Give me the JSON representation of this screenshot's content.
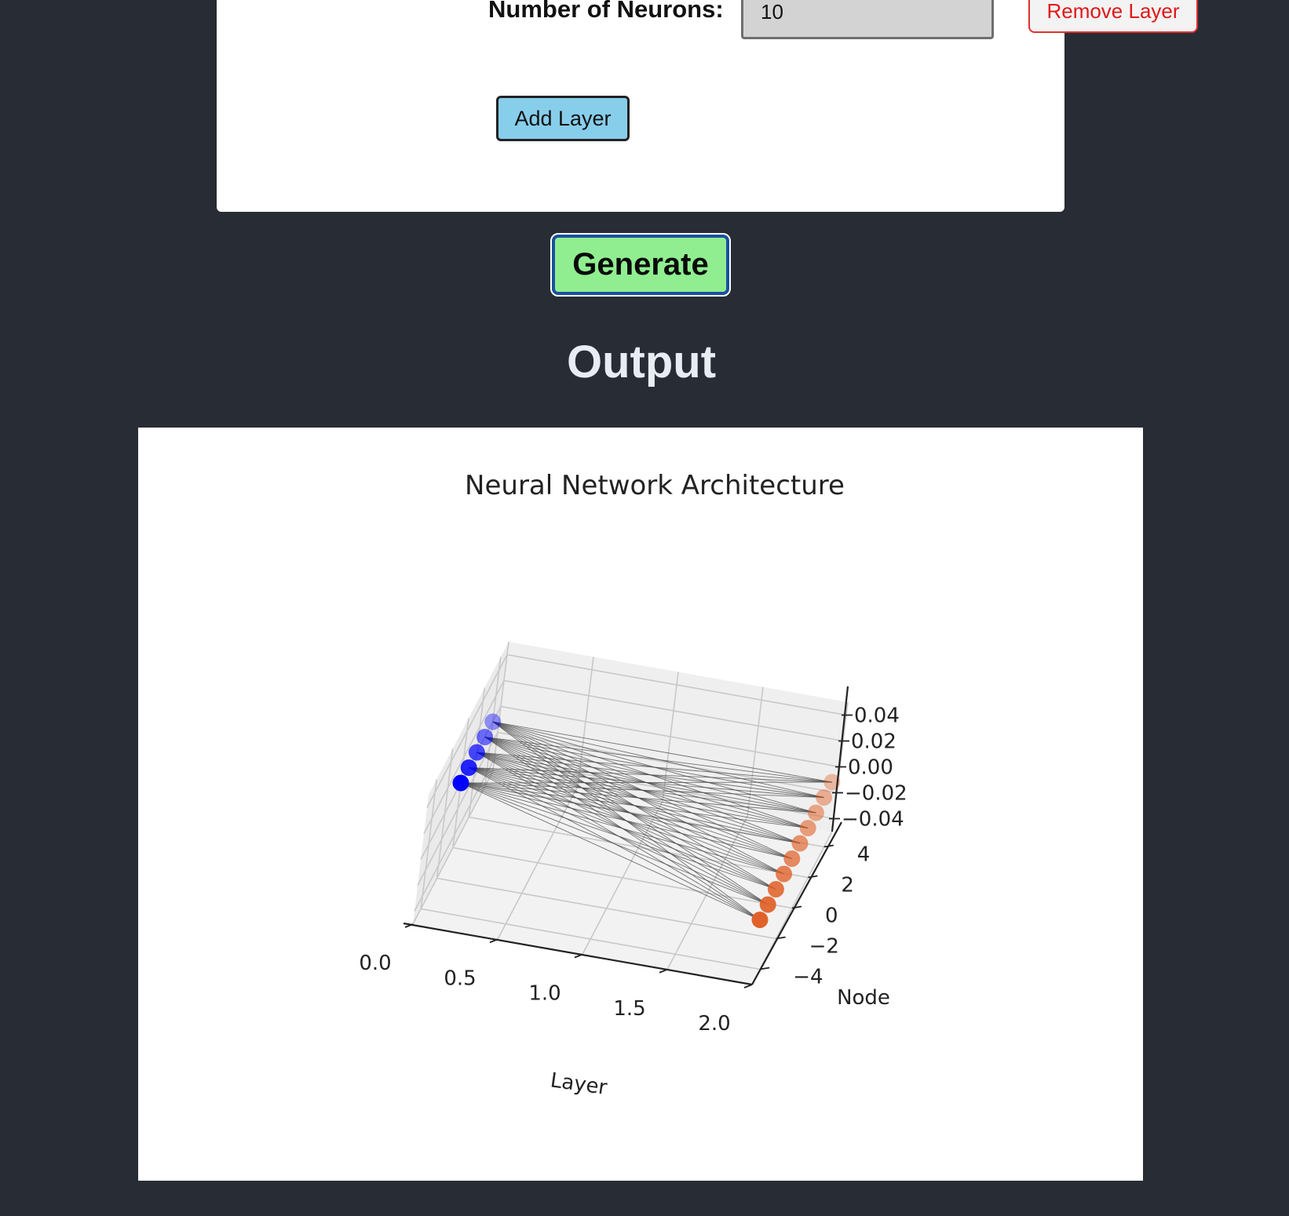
{
  "layer_form": {
    "neurons_label": "Number of Neurons:",
    "neurons_value": "10",
    "remove_label": "Remove Layer",
    "add_label": "Add Layer"
  },
  "generate_label": "Generate",
  "output_heading": "Output",
  "colors": {
    "background": "#282c34",
    "generate_bg": "#90ee90",
    "add_bg": "#87ceeb",
    "remove_text": "#e01818",
    "input_node": "#0000ff",
    "output_node": "#e0622a"
  },
  "chart_data": {
    "type": "scatter",
    "projection": "3d",
    "title": "Neural Network Architecture",
    "xlabel": "Layer",
    "ylabel": "Node",
    "zlabel": "",
    "xlim": [
      0,
      2
    ],
    "ylim": [
      -5,
      5
    ],
    "zlim": [
      -0.05,
      0.05
    ],
    "x_ticks": [
      "0.0",
      "0.5",
      "1.0",
      "1.5",
      "2.0"
    ],
    "y_ticks": [
      "−4",
      "−2",
      "0",
      "2",
      "4"
    ],
    "z_ticks": [
      "−0.04",
      "−0.02",
      "0.00",
      "0.02",
      "0.04"
    ],
    "grid": true,
    "layers": [
      {
        "layer": 0,
        "nodes": 5,
        "node_positions": [
          0,
          1,
          2,
          3,
          4
        ],
        "color": "#0000ff"
      },
      {
        "layer": 2,
        "nodes": 10,
        "node_positions": [
          -5,
          -4,
          -3,
          -2,
          -1,
          0,
          1,
          2,
          3,
          4
        ],
        "color": "#e0622a"
      }
    ],
    "edges": "fully connected between layer 0 and layer 2"
  }
}
